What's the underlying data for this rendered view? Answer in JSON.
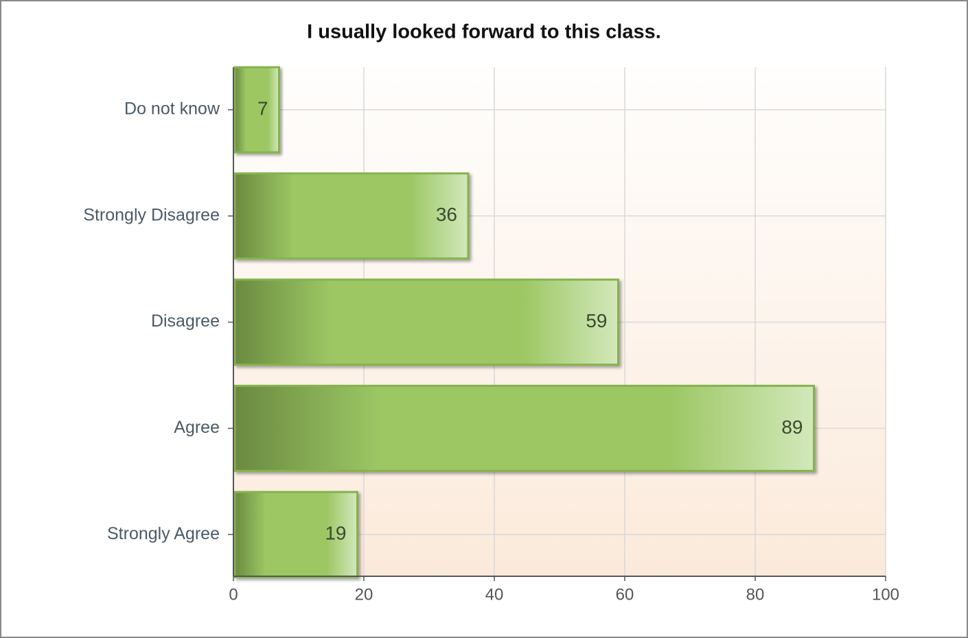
{
  "chart_data": {
    "type": "barh",
    "title": "I usually looked forward to this class.",
    "categories": [
      "Do not know",
      "Strongly Disagree",
      "Disagree",
      "Agree",
      "Strongly Agree"
    ],
    "values": [
      7,
      36,
      59,
      89,
      19
    ],
    "color": "#9cc764",
    "xlim": [
      0,
      100
    ],
    "xticks": [
      0,
      20,
      40,
      60,
      80,
      100
    ],
    "grid": true
  }
}
